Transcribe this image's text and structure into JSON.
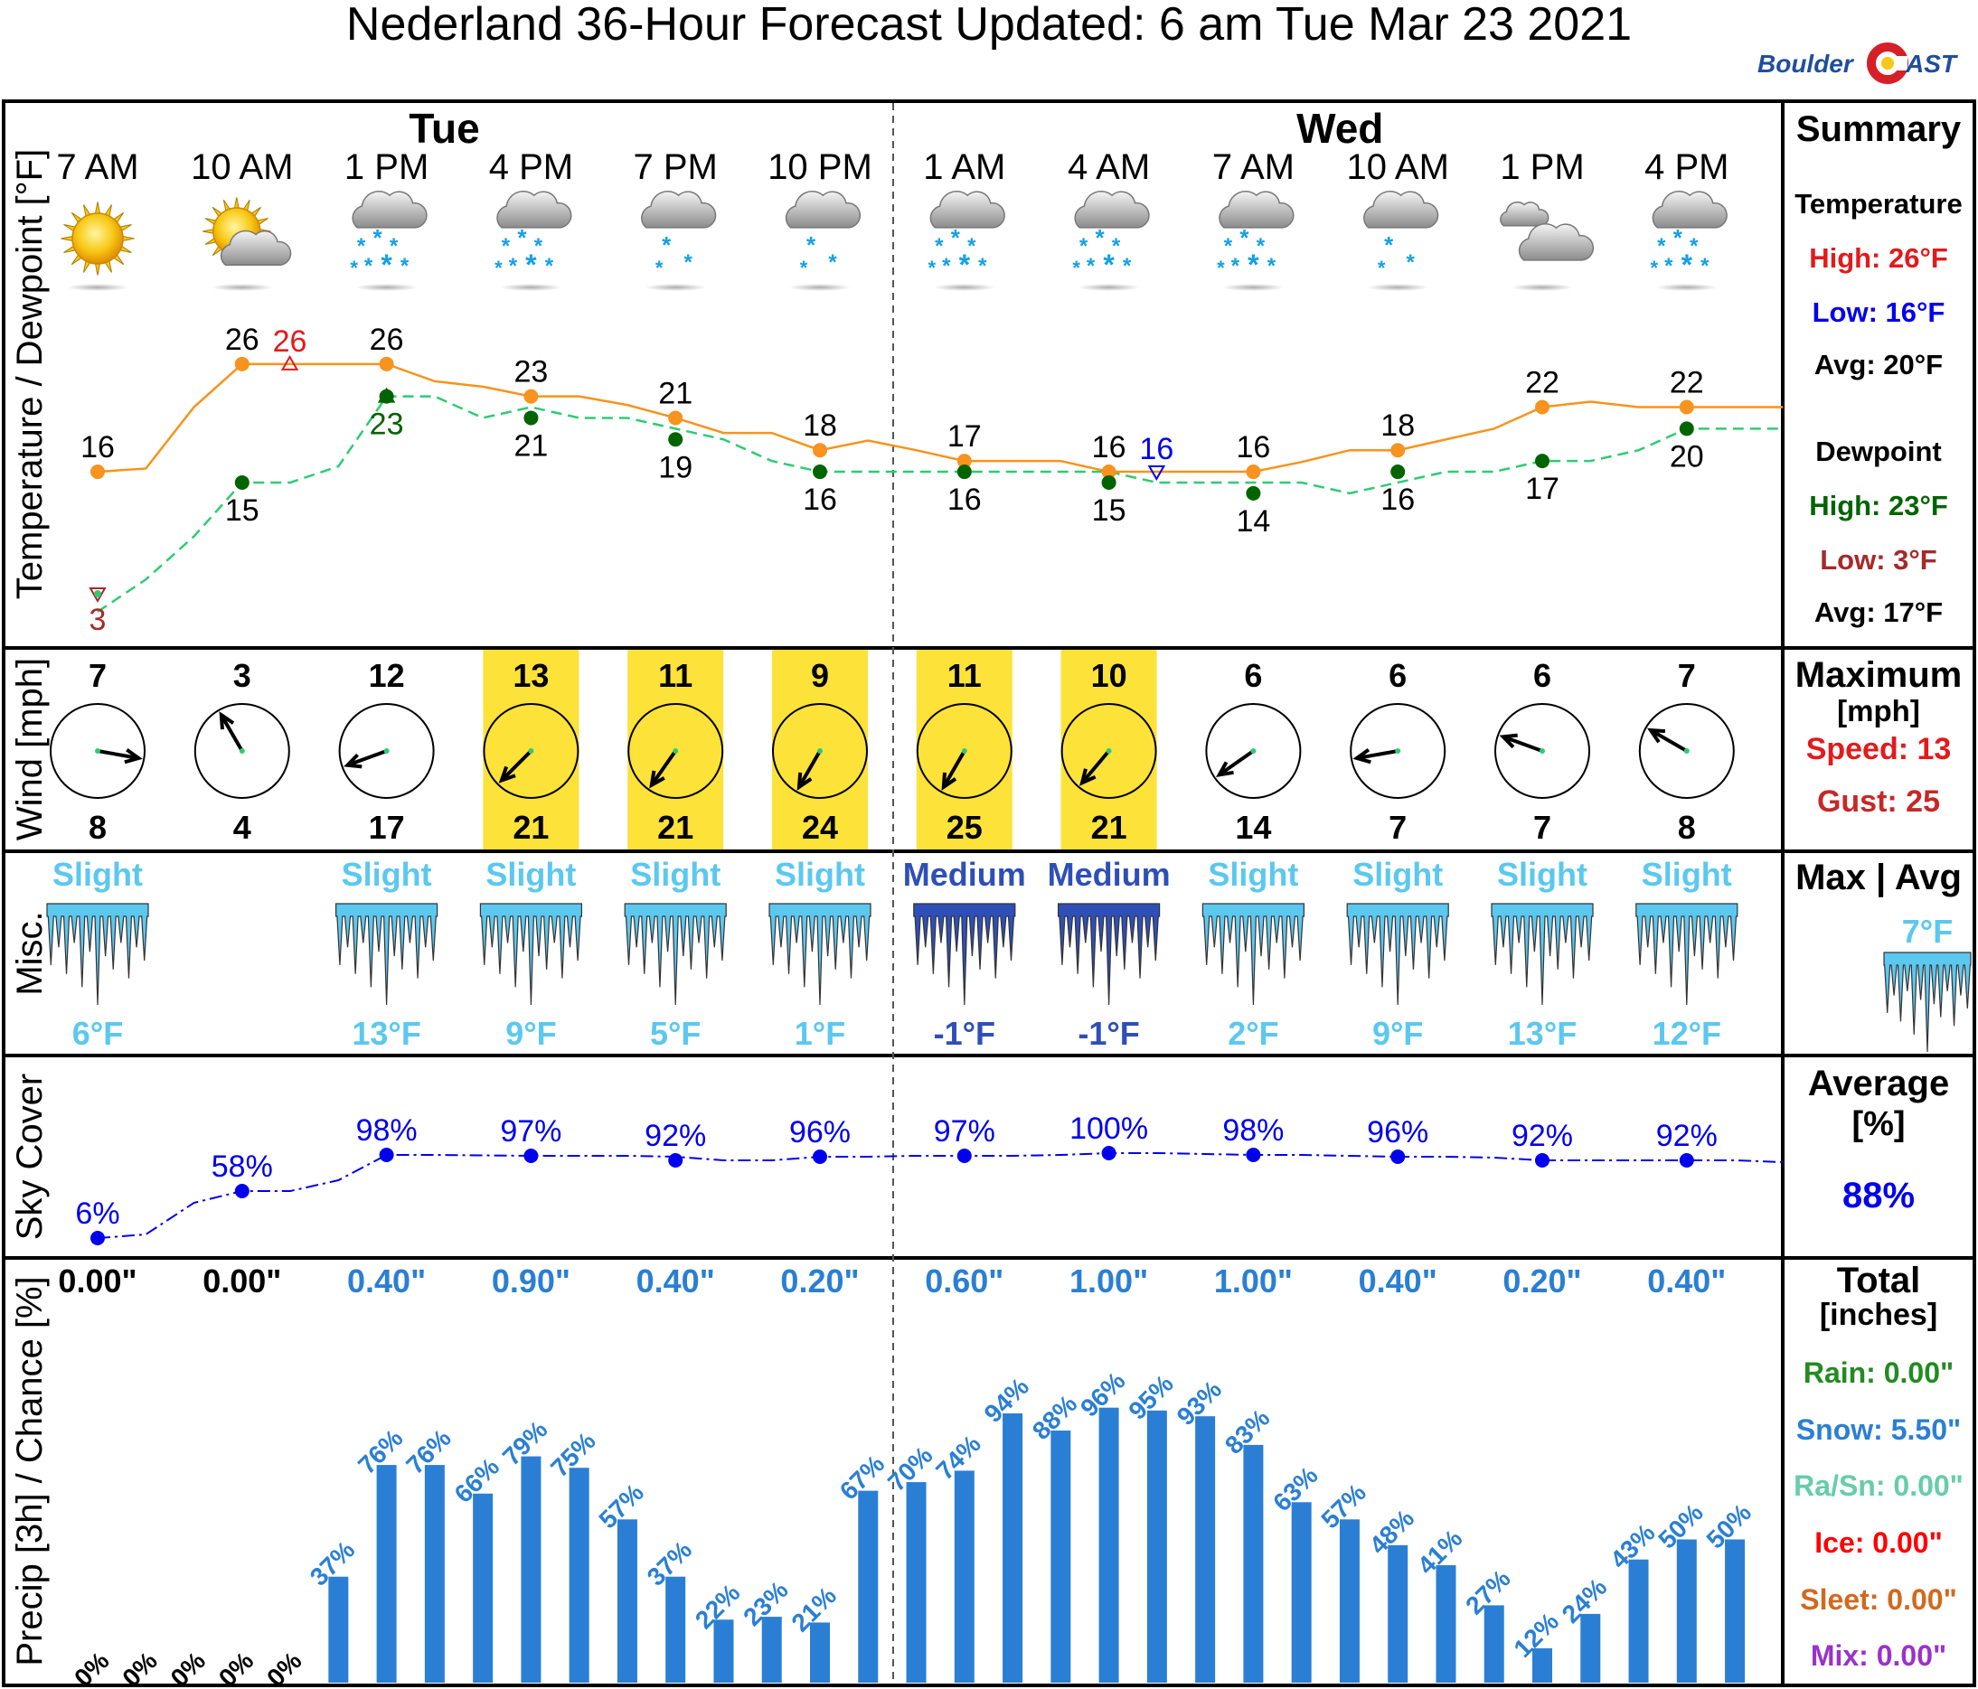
{
  "title": "Nederland 36-Hour Forecast Updated: 6 am Tue Mar 23 2021",
  "logo": {
    "part1": "Boulder",
    "part2": "AST"
  },
  "days": [
    {
      "label": "Tue",
      "col": 2.4
    },
    {
      "label": "Wed",
      "col": 8.6
    }
  ],
  "times": [
    "7 AM",
    "10 AM",
    "1 PM",
    "4 PM",
    "7 PM",
    "10 PM",
    "1 AM",
    "4 AM",
    "7 AM",
    "10 AM",
    "1 PM",
    "4 PM"
  ],
  "icons": [
    "sun",
    "sun-cloud",
    "snow",
    "snow",
    "light-snow",
    "light-snow",
    "snow",
    "snow",
    "snow",
    "light-snow",
    "cloudy",
    "snow"
  ],
  "panel_labels": {
    "temp": "Temperature / Dewpoint [°F]",
    "wind": "Wind [mph]",
    "misc": "Misc.",
    "sky": "Sky Cover",
    "precip": "Precip [3h] / Chance [%]"
  },
  "summary": {
    "header": "Summary",
    "temperature_header": "Temperature",
    "temp_high": "High: 26°F",
    "temp_low": "Low: 16°F",
    "temp_avg": "Avg: 20°F",
    "dewpoint_header": "Dewpoint",
    "dew_high": "High: 23°F",
    "dew_low": "Low: 3°F",
    "dew_avg": "Avg: 17°F",
    "wind_header": "Maximum",
    "wind_unit": "[mph]",
    "wind_speed": "Speed: 13",
    "wind_gust": "Gust: 25",
    "misc_header": "Max | Avg",
    "misc_value": "7°F",
    "sky_header": "Average",
    "sky_unit": "[%]",
    "sky_value": "88%",
    "precip_header": "Total",
    "precip_unit": "[inches]",
    "rain": "Rain: 0.00\"",
    "snow": "Snow: 5.50\"",
    "rasn": "Ra/Sn: 0.00\"",
    "ice": "Ice: 0.00\"",
    "sleet": "Sleet: 0.00\"",
    "mix": "Mix: 0.00\""
  },
  "colors": {
    "temp": "#f7931e",
    "dew": "#006400",
    "dew_line": "#2ecc71",
    "wind_highlight": "#fde23a",
    "sky": "#0000ee",
    "precip": "#2a7fd4",
    "wind_chill_light": "#5bc8f0",
    "wind_chill_dark": "#2e4fb8",
    "high_red": "#e31a1c",
    "low_blue": "#0000ee",
    "dew_low": "#a52a2a",
    "rain": "#228b22",
    "snow": "#2a7fd4",
    "rasn": "#66cdaa",
    "ice": "#ff0000",
    "sleet": "#d2691e",
    "mix": "#9932cc"
  },
  "chart_data": {
    "type": "line",
    "x": [
      "7 AM",
      "10 AM",
      "1 PM",
      "4 PM",
      "7 PM",
      "10 PM",
      "1 AM",
      "4 AM",
      "7 AM",
      "10 AM",
      "1 PM",
      "4 PM"
    ],
    "temp_ylim": [
      0,
      30
    ],
    "temperature": {
      "line": [
        16,
        16.3,
        22,
        26,
        26,
        26,
        26,
        24.4,
        23.9,
        23,
        23,
        22.2,
        21,
        19.6,
        19.6,
        18,
        18.9,
        18,
        17,
        17,
        17,
        16,
        16,
        16,
        16,
        16.9,
        18,
        18,
        19,
        20,
        22,
        22.5,
        22,
        22,
        22,
        22
      ],
      "points": [
        16,
        26,
        26,
        23,
        21,
        18,
        17,
        16,
        16,
        18,
        22,
        22
      ],
      "labels": [
        "16",
        "26",
        "26",
        "23",
        "21",
        "18",
        "17",
        "16",
        "16",
        "18",
        "22",
        "22"
      ],
      "high": {
        "label": "26",
        "col": 1.33,
        "value": 26
      },
      "low": {
        "label": "16",
        "col": 7.33,
        "value": 16
      }
    },
    "dewpoint": {
      "line": [
        3,
        6,
        10,
        15,
        15,
        16.5,
        23,
        23,
        21,
        22,
        21,
        21,
        20,
        19,
        17,
        16,
        16,
        16,
        16,
        16,
        16,
        16,
        15,
        15,
        15,
        15,
        14,
        15,
        16,
        16,
        17,
        17,
        18,
        20,
        20,
        20
      ],
      "points": [
        3,
        15,
        23,
        21,
        19,
        16,
        16,
        15,
        14,
        16,
        17,
        20
      ],
      "labels": [
        "3",
        "15",
        "23",
        "21",
        "19",
        "16",
        "16",
        "15",
        "14",
        "16",
        "17",
        "20"
      ],
      "high": {
        "label": "23",
        "col": 2,
        "value": 23
      },
      "low": {
        "label": "3",
        "col": 0,
        "value": 3
      }
    },
    "wind": {
      "speed": [
        "7",
        "3",
        "12",
        "13",
        "11",
        "9",
        "11",
        "10",
        "6",
        "6",
        "6",
        "7"
      ],
      "gust": [
        "8",
        "4",
        "17",
        "21",
        "21",
        "24",
        "25",
        "21",
        "14",
        "7",
        "7",
        "8"
      ],
      "direction_deg": [
        100,
        330,
        250,
        225,
        215,
        210,
        210,
        220,
        235,
        260,
        290,
        300
      ],
      "highlight": [
        false,
        false,
        false,
        true,
        true,
        true,
        true,
        true,
        false,
        false,
        false,
        false
      ]
    },
    "wind_chill": {
      "severity": [
        "Slight",
        "",
        "Slight",
        "Slight",
        "Slight",
        "Slight",
        "Medium",
        "Medium",
        "Slight",
        "Slight",
        "Slight",
        "Slight"
      ],
      "value": [
        "6°F",
        "",
        "13°F",
        "9°F",
        "5°F",
        "1°F",
        "-1°F",
        "-1°F",
        "2°F",
        "9°F",
        "13°F",
        "12°F"
      ]
    },
    "sky_cover": {
      "line": [
        6,
        10,
        45,
        58,
        58,
        70,
        98,
        98,
        97.5,
        97,
        97,
        97,
        96,
        92,
        92,
        96,
        96,
        97,
        97,
        97,
        98,
        100,
        100,
        99,
        98,
        98,
        97,
        96,
        96,
        95,
        92,
        92,
        92,
        92,
        92,
        90
      ],
      "points": [
        6,
        58,
        98,
        97,
        92,
        96,
        97,
        100,
        98,
        96,
        92,
        92
      ],
      "labels": [
        "6%",
        "58%",
        "98%",
        "97%",
        "92%",
        "96%",
        "97%",
        "100%",
        "98%",
        "96%",
        "92%",
        "92%"
      ],
      "ylim": [
        0,
        100
      ]
    },
    "precip": {
      "amounts": [
        "0.00\"",
        "0.00\"",
        "0.40\"",
        "0.90\"",
        "0.40\"",
        "0.20\"",
        "0.60\"",
        "1.00\"",
        "1.00\"",
        "0.40\"",
        "0.20\"",
        "0.40\""
      ],
      "chance": [
        0,
        0,
        0,
        0,
        0,
        37,
        76,
        76,
        66,
        79,
        75,
        57,
        37,
        22,
        23,
        21,
        67,
        70,
        74,
        94,
        88,
        96,
        95,
        93,
        83,
        63,
        57,
        48,
        41,
        27,
        12,
        24,
        43,
        50,
        50
      ],
      "chance_labels": [
        "0%",
        "0%",
        "0%",
        "0%",
        "0%",
        "37%",
        "76%",
        "76%",
        "66%",
        "79%",
        "75%",
        "57%",
        "37%",
        "22%",
        "23%",
        "21%",
        "67%",
        "70%",
        "74%",
        "94%",
        "88%",
        "96%",
        "95%",
        "93%",
        "83%",
        "63%",
        "57%",
        "48%",
        "41%",
        "27%",
        "12%",
        "24%",
        "43%",
        "50%",
        "50%"
      ],
      "ylim": [
        0,
        100
      ]
    }
  }
}
